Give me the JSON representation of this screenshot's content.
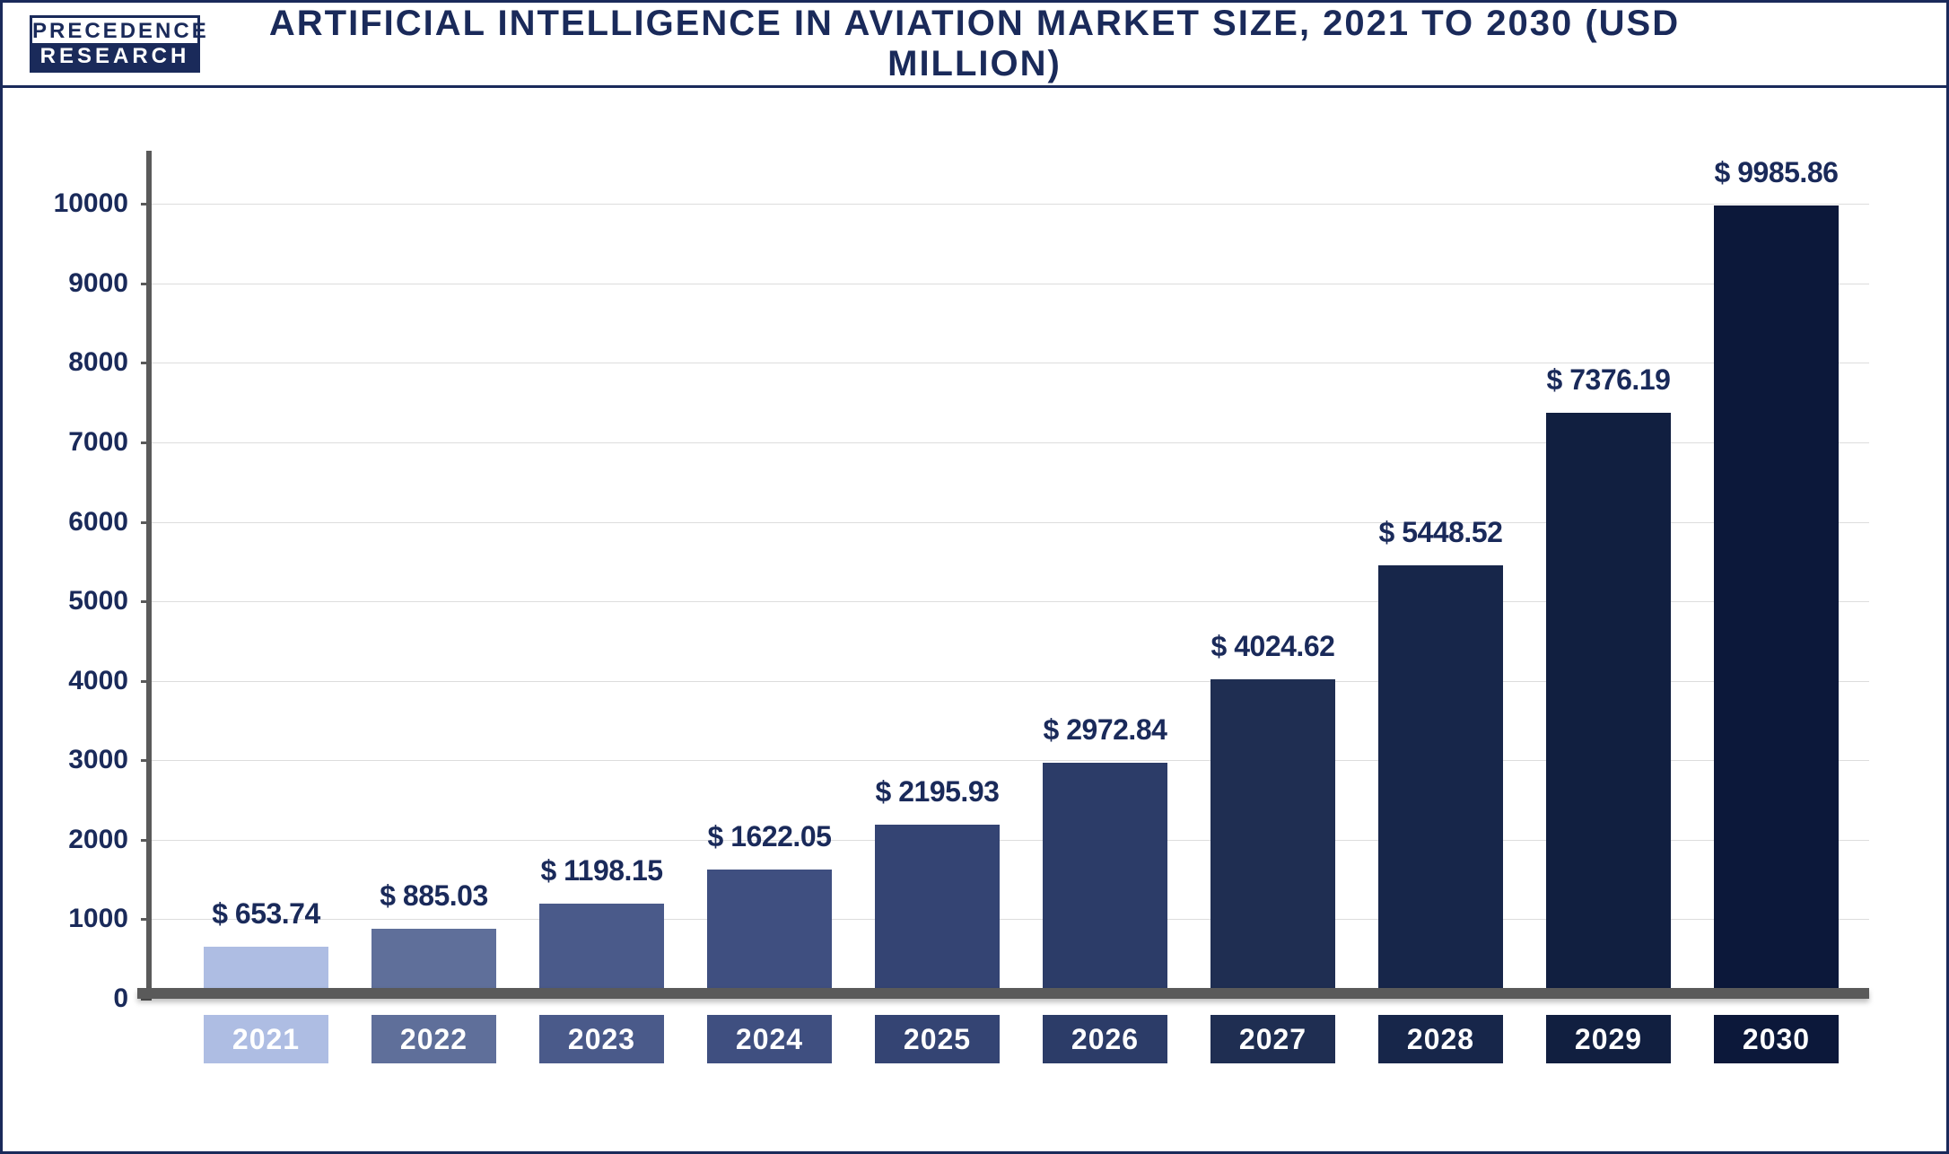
{
  "logo": {
    "top": "PRECEDENCE",
    "bottom": "RESEARCH"
  },
  "chart": {
    "type": "bar",
    "title": "ARTIFICIAL INTELLIGENCE IN AVIATION MARKET SIZE, 2021 TO 2030 (USD MILLION)",
    "background_color": "#ffffff",
    "frame_color": "#1a2a5a",
    "axis_color": "#5a5a5a",
    "grid_color": "#dddddd",
    "title_color": "#1a2a5a",
    "title_fontsize": 40,
    "value_label_color": "#1a2a5a",
    "value_label_fontsize": 32,
    "tick_label_color": "#1a2a5a",
    "tick_label_fontsize": 30,
    "category_label_fontsize": 32,
    "category_label_color": "#ffffff",
    "ylim": [
      0,
      10500
    ],
    "ytick_step": 1000,
    "yticks": [
      0,
      1000,
      2000,
      3000,
      4000,
      5000,
      6000,
      7000,
      8000,
      9000,
      10000
    ],
    "value_prefix": "$ ",
    "categories": [
      "2021",
      "2022",
      "2023",
      "2024",
      "2025",
      "2026",
      "2027",
      "2028",
      "2029",
      "2030"
    ],
    "values": [
      653.74,
      885.03,
      1198.15,
      1622.05,
      2195.93,
      2972.84,
      4024.62,
      5448.52,
      7376.19,
      9985.86
    ],
    "bar_colors": [
      "#aebde3",
      "#5f6f9a",
      "#4a5a8a",
      "#3f4f80",
      "#344473",
      "#2c3c68",
      "#1f2e52",
      "#17264a",
      "#111f40",
      "#0c183a"
    ],
    "category_colors": [
      "#aebde3",
      "#5f6f9a",
      "#4a5a8a",
      "#3f4f80",
      "#344473",
      "#2c3c68",
      "#1f2e52",
      "#17264a",
      "#111f40",
      "#0c183a"
    ],
    "bar_width_ratio": 0.74,
    "n_bars": 10
  }
}
